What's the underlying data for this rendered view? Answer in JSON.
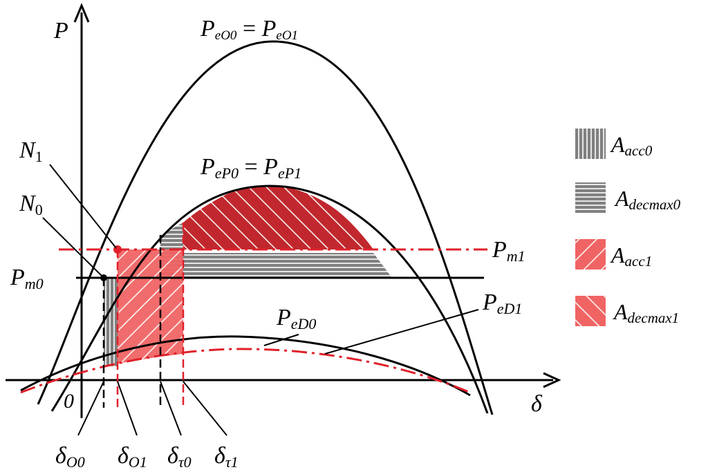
{
  "axes": {
    "y_symbol": "P",
    "x_symbol": "δ",
    "origin": "0"
  },
  "curves": {
    "pe_o": {
      "base": "P",
      "sub": "eO0",
      "eq": " = ",
      "base2": "P",
      "sub2": "eO1"
    },
    "pe_p": {
      "base": "P",
      "sub": "eP0",
      "eq": " = ",
      "base2": "P",
      "sub2": "eP1"
    },
    "pe_d0": {
      "base": "P",
      "sub": "eD0"
    },
    "pe_d1": {
      "base": "P",
      "sub": "eD1"
    }
  },
  "levels": {
    "pm0": {
      "base": "P",
      "sub": "m0"
    },
    "pm1": {
      "base": "P",
      "sub": "m1"
    }
  },
  "points": {
    "n0": {
      "base": "N",
      "sub": "0"
    },
    "n1": {
      "base": "N",
      "sub": "1"
    }
  },
  "angles": [
    {
      "base": "δ",
      "sub": "O0"
    },
    {
      "base": "δ",
      "sub": "O1"
    },
    {
      "base": "δ",
      "sub": "τ0"
    },
    {
      "base": "δ",
      "sub": "τ1"
    }
  ],
  "legend": [
    {
      "base": "A",
      "sub": "acc0"
    },
    {
      "base": "A",
      "sub": "decmax0"
    },
    {
      "base": "A",
      "sub": "acc1"
    },
    {
      "base": "A",
      "sub": "decmax1"
    }
  ],
  "colors": {
    "axis": "#000000",
    "gray_fill": "#808080",
    "red_light": "#f06464",
    "red_dark": "#c0282d",
    "red_line": "#e0202a"
  }
}
